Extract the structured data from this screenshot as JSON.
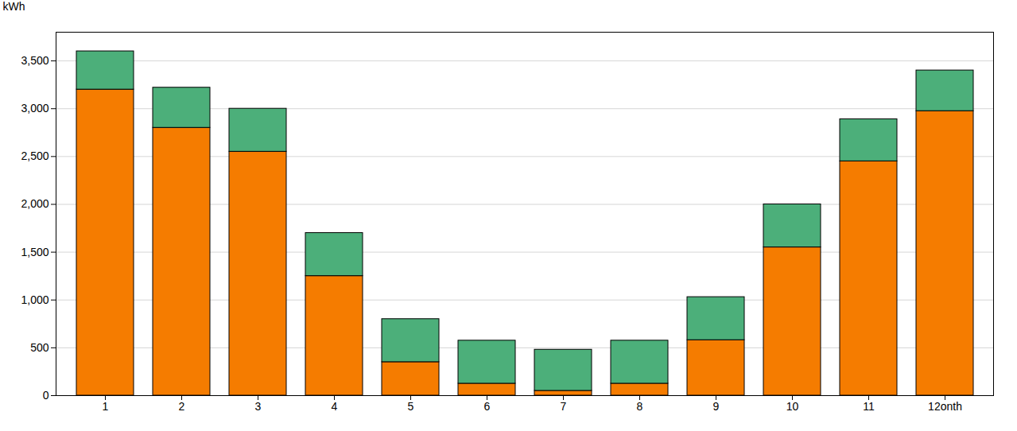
{
  "chart_data": {
    "type": "bar",
    "stacked": true,
    "categories": [
      "1",
      "2",
      "3",
      "4",
      "5",
      "6",
      "7",
      "8",
      "9",
      "10",
      "11",
      "12onth"
    ],
    "series": [
      {
        "color": "#F57C00",
        "values": [
          3200,
          2800,
          2550,
          1250,
          350,
          125,
          50,
          125,
          580,
          1550,
          2450,
          2975
        ]
      },
      {
        "color": "#4CAF7A",
        "values": [
          400,
          420,
          450,
          450,
          450,
          450,
          430,
          450,
          450,
          450,
          440,
          425
        ]
      }
    ],
    "ylabel": "kWh",
    "ylim": [
      0,
      3800
    ],
    "yticks": [
      0,
      500,
      1000,
      1500,
      2000,
      2500,
      3000,
      3500
    ],
    "grid": true
  }
}
